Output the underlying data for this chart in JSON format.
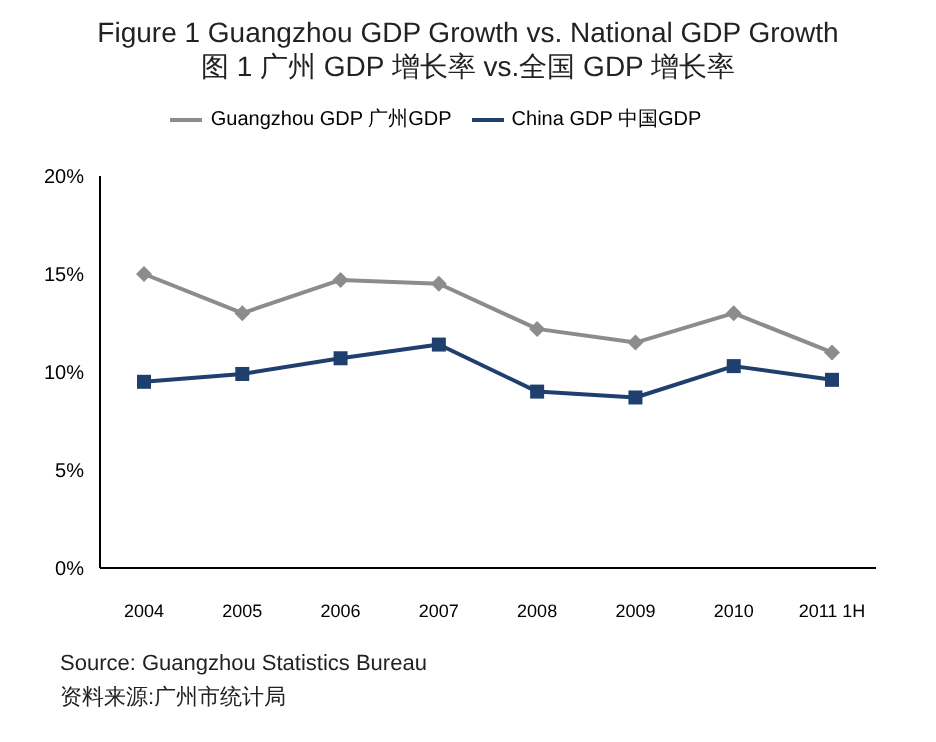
{
  "chart_data": {
    "type": "line",
    "title": "Figure 1 Guangzhou GDP Growth vs. National GDP Growth",
    "subtitle": "图 1 广州 GDP 增长率 vs.全国 GDP 增长率",
    "categories": [
      "2004",
      "2005",
      "2006",
      "2007",
      "2008",
      "2009",
      "2010",
      "2011 1H"
    ],
    "series": [
      {
        "name": "Guangzhou GDP 广州GDP",
        "color": "#8c8c8c",
        "marker": "diamond",
        "values": [
          15.0,
          13.0,
          14.7,
          14.5,
          12.2,
          11.5,
          13.0,
          11.0
        ]
      },
      {
        "name": "China GDP 中国GDP",
        "color": "#1f3f6e",
        "marker": "square",
        "values": [
          9.5,
          9.9,
          10.7,
          11.4,
          9.0,
          8.7,
          10.3,
          9.6
        ]
      }
    ],
    "ylim": [
      0,
      20
    ],
    "yticks": [
      {
        "value": 0,
        "label": "0%"
      },
      {
        "value": 5,
        "label": "5%"
      },
      {
        "value": 10,
        "label": "10%"
      },
      {
        "value": 15,
        "label": "15%"
      },
      {
        "value": 20,
        "label": "20%"
      }
    ],
    "grid": false,
    "legend": "top",
    "annotations": [
      "Source: Guangzhou Statistics Bureau",
      "资料来源:广州市统计局"
    ]
  }
}
